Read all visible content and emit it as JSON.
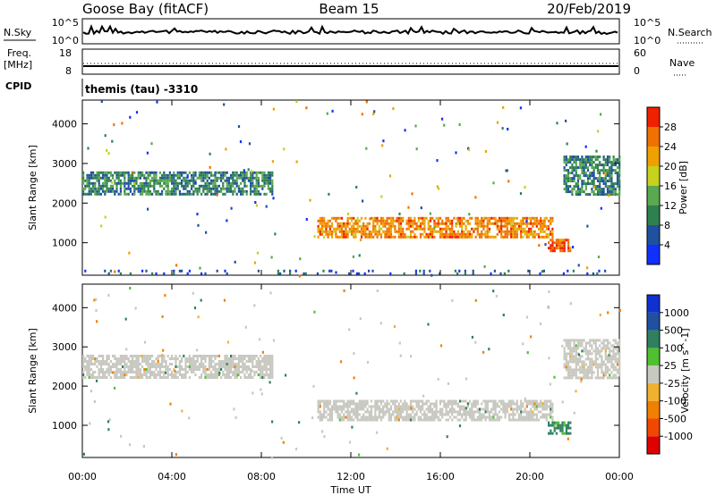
{
  "header": {
    "station": "Goose Bay (fitACF)",
    "beam": "Beam 15",
    "date": "20/Feb/2019"
  },
  "strips": {
    "nsky": {
      "label": "N.Sky",
      "tick_top": "10^5",
      "tick_bottom": "10^0"
    },
    "nsearch": {
      "label": "N.Search",
      "tick_top": "10^5",
      "tick_bottom": "10^0"
    },
    "freq": {
      "label_line1": "Freq.",
      "label_line2": "[MHz]",
      "tick_top": "18",
      "tick_bottom": "8"
    },
    "nave": {
      "label": "Nave",
      "tick_top": "60",
      "tick_bottom": "0"
    },
    "cpid": {
      "label": "CPID",
      "value": "themis (tau) -3310"
    }
  },
  "colors": {
    "power": [
      "#1030ff",
      "#2050a0",
      "#2e8050",
      "#5aa850",
      "#c8d020",
      "#f0a000",
      "#f07000",
      "#f02000"
    ],
    "velocity": [
      "#e00000",
      "#f04800",
      "#f08000",
      "#f0b030",
      "#c8c8c0",
      "#50c030",
      "#308060",
      "#2050a0",
      "#1030d0"
    ],
    "velocity_groundscatter": "#c8c8c0"
  },
  "chart_data": [
    {
      "type": "heatmap",
      "title": "Power",
      "xlabel": "Time UT",
      "ylabel": "Slant Range [km]",
      "x_ticks": [
        "00:00",
        "04:00",
        "08:00",
        "12:00",
        "16:00",
        "20:00",
        "00:00"
      ],
      "xlim_hours": [
        0,
        24
      ],
      "ylim_km": [
        180,
        4600
      ],
      "y_ticks": [
        1000,
        2000,
        3000,
        4000
      ],
      "colorbar": {
        "label": "Power [dB]",
        "ticks": [
          "4",
          "8",
          "12",
          "16",
          "20",
          "24",
          "28"
        ],
        "range": [
          0,
          30
        ]
      },
      "regions": [
        {
          "t0": 0.0,
          "t1": 8.5,
          "r0": 2250,
          "r1": 2800,
          "value": 10,
          "note": "echo band"
        },
        {
          "t0": 10.5,
          "t1": 21.0,
          "r0": 1150,
          "r1": 1650,
          "value": 24,
          "note": "strong echo band"
        },
        {
          "t0": 20.8,
          "t1": 21.8,
          "r0": 800,
          "r1": 1100,
          "value": 28
        },
        {
          "t0": 21.5,
          "t1": 24.0,
          "r0": 2200,
          "r1": 3200,
          "value": 10
        },
        {
          "t0": 0.0,
          "t1": 24.0,
          "r0": 200,
          "r1": 320,
          "value": 6,
          "note": "sparse near range"
        }
      ]
    },
    {
      "type": "heatmap",
      "title": "Velocity",
      "xlabel": "Time UT",
      "ylabel": "Slant Range [km]",
      "x_ticks": [
        "00:00",
        "04:00",
        "08:00",
        "12:00",
        "16:00",
        "20:00",
        "00:00"
      ],
      "xlim_hours": [
        0,
        24
      ],
      "ylim_km": [
        180,
        4600
      ],
      "y_ticks": [
        1000,
        2000,
        3000,
        4000
      ],
      "colorbar": {
        "label": "Velocity [m s^-1]",
        "ticks": [
          "-1000",
          "-500",
          "-100",
          "-25",
          "25",
          "100",
          "500",
          "1000"
        ]
      },
      "regions": [
        {
          "t0": 0.0,
          "t1": 8.5,
          "r0": 2250,
          "r1": 2800,
          "value": 0,
          "note": "ground scatter"
        },
        {
          "t0": 10.5,
          "t1": 21.0,
          "r0": 1150,
          "r1": 1650,
          "value": 0,
          "note": "ground scatter"
        },
        {
          "t0": 20.8,
          "t1": 21.8,
          "r0": 800,
          "r1": 1100,
          "value": 200
        },
        {
          "t0": 21.5,
          "t1": 24.0,
          "r0": 2200,
          "r1": 3200,
          "value": 0
        }
      ]
    }
  ]
}
